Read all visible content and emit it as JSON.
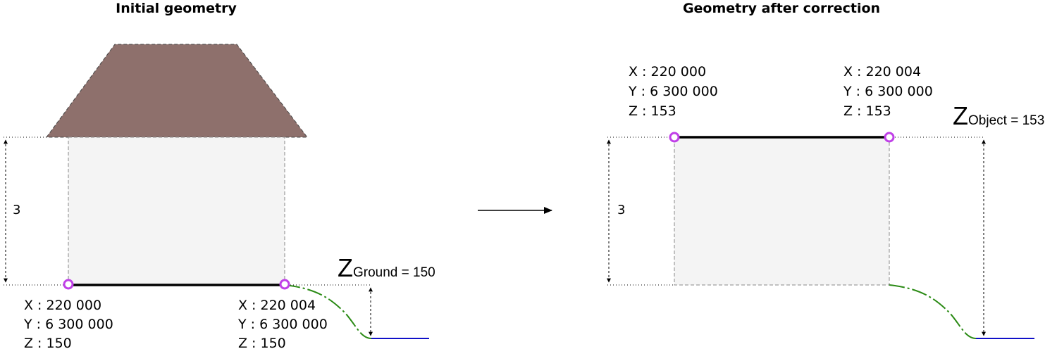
{
  "titles": {
    "left": "Initial geometry",
    "right": "Geometry after correction"
  },
  "left": {
    "height_label": "3",
    "point_a": {
      "x": "X : 220 000",
      "y": "Y : 6 300 000",
      "z": "Z : 150"
    },
    "point_b": {
      "x": "X : 220 004",
      "y": "Y : 6 300 000",
      "z": "Z : 150"
    },
    "z_ground": {
      "symbol": "Z",
      "subscript": "Ground = 150"
    }
  },
  "right": {
    "height_label": "3",
    "point_a": {
      "x": "X : 220 000",
      "y": "Y : 6 300 000",
      "z": "Z : 153"
    },
    "point_b": {
      "x": "X : 220 004",
      "y": "Y : 6 300 000",
      "z": "Z : 153"
    },
    "z_object": {
      "symbol": "Z",
      "subscript": "Object = 153"
    }
  },
  "colors": {
    "roof": "#8e706c",
    "wall": "#f4f4f4",
    "vertex": "#c040e8",
    "terrain": "#2a8a14",
    "water": "#1010c8"
  }
}
